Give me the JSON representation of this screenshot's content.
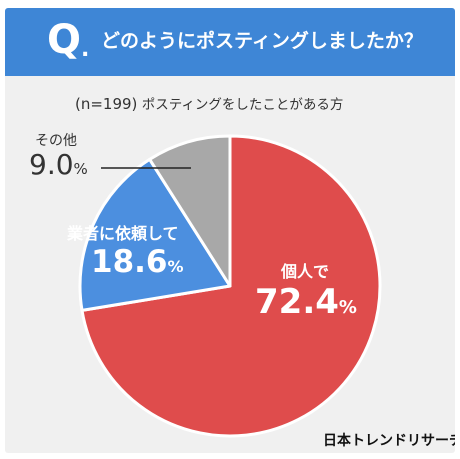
{
  "header": {
    "q_letter": "Q",
    "q_dot": ".",
    "question": "どのようにポスティングしましたか？"
  },
  "subtitle": {
    "n": "(n=199)",
    "text": "ポスティングをしたことがある方"
  },
  "colors": {
    "banner": "#3e86d6",
    "kojin": "#df4c4c",
    "gyosha": "#4c8fdf",
    "other": "#a8a8a8",
    "background": "#f0f0f0"
  },
  "chart_data": {
    "type": "pie",
    "slices": [
      {
        "name": "個人で",
        "value": 72.4,
        "display": "72.4",
        "color": "#df4c4c"
      },
      {
        "name": "業者に依頼して",
        "value": 18.6,
        "display": "18.6",
        "color": "#4c8fdf"
      },
      {
        "name": "その他",
        "value": 9.0,
        "display": "9.0",
        "color": "#a8a8a8"
      }
    ],
    "unit": "%",
    "start_angle_deg": 0,
    "direction": "clockwise"
  },
  "brand": "日本トレンドリサーチ"
}
